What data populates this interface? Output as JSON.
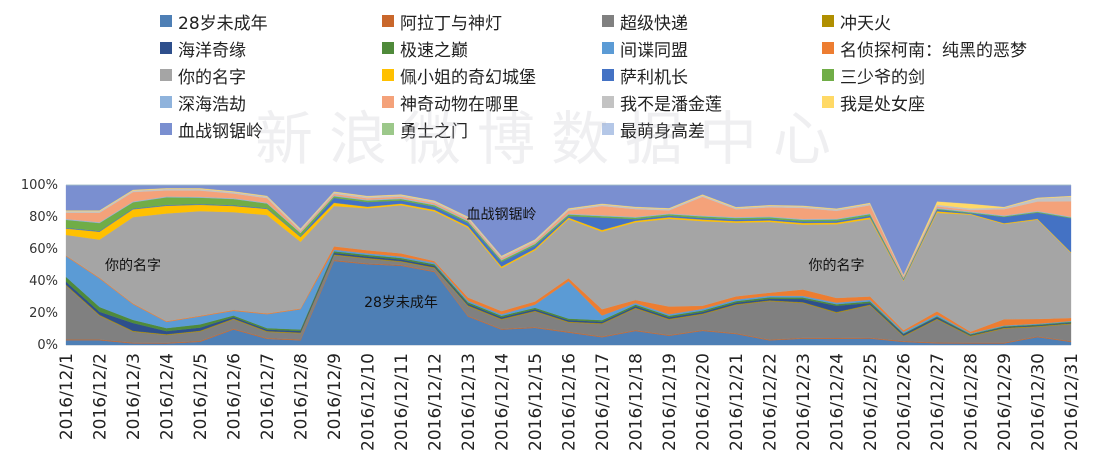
{
  "watermark": "新浪微博数据中心",
  "chart_data": {
    "type": "area",
    "stacked_percent": true,
    "x": [
      "2016/12/1",
      "2016/12/2",
      "2016/12/3",
      "2016/12/4",
      "2016/12/5",
      "2016/12/6",
      "2016/12/7",
      "2016/12/8",
      "2016/12/9",
      "2016/12/10",
      "2016/12/11",
      "2016/12/12",
      "2016/12/13",
      "2016/12/14",
      "2016/12/15",
      "2016/12/16",
      "2016/12/17",
      "2016/12/18",
      "2016/12/19",
      "2016/12/20",
      "2016/12/21",
      "2016/12/22",
      "2016/12/23",
      "2016/12/24",
      "2016/12/25",
      "2016/12/26",
      "2016/12/27",
      "2016/12/28",
      "2016/12/29",
      "2016/12/30",
      "2016/12/31"
    ],
    "y_ticks": [
      "0%",
      "20%",
      "40%",
      "60%",
      "80%",
      "100%"
    ],
    "ylim": [
      0,
      100
    ],
    "legend_position": "top",
    "annotations": [
      {
        "text": "你的名字",
        "x": "2016/12/3",
        "y": 50
      },
      {
        "text": "28岁未成年",
        "x": "2016/12/11",
        "y": 27
      },
      {
        "text": "血战钢锯岭",
        "x": "2016/12/14",
        "y": 82
      },
      {
        "text": "你的名字",
        "x": "2016/12/24",
        "y": 50
      }
    ],
    "series": [
      {
        "name": "28岁未成年",
        "color": "#4e7fb5",
        "values": [
          3,
          3,
          1,
          1,
          2,
          10,
          4,
          3,
          52,
          52,
          51,
          47,
          18,
          10,
          11,
          8,
          5,
          9,
          6,
          9,
          7,
          3,
          4,
          4,
          4,
          2,
          1,
          1,
          1,
          5,
          2
        ]
      },
      {
        "name": "阿拉丁与神灯",
        "color": "#c9672b",
        "values": [
          0.5,
          0.5,
          0.5,
          0.5,
          0.5,
          0.5,
          0.5,
          0.5,
          0.5,
          0.5,
          0.5,
          0.5,
          0.5,
          0.5,
          0.5,
          0.5,
          0.5,
          0.5,
          0.5,
          0.5,
          0.5,
          0.5,
          0.5,
          0.5,
          0.5,
          0.5,
          0.5,
          0.5,
          0.5,
          0.5,
          0.5
        ]
      },
      {
        "name": "超级快递",
        "color": "#808080",
        "values": [
          34,
          15,
          7,
          5,
          6,
          6,
          4,
          4,
          3,
          3,
          2,
          2,
          6,
          6,
          10,
          6,
          8,
          14,
          10,
          10,
          18,
          25,
          22,
          16,
          20,
          3,
          14,
          4,
          9,
          6,
          11
        ]
      },
      {
        "name": "冲天火",
        "color": "#b08f00",
        "values": [
          0.5,
          0.5,
          0.5,
          0.5,
          0.5,
          0.5,
          0.5,
          0.5,
          0.5,
          0.5,
          0.5,
          0.5,
          0.5,
          0.5,
          0.5,
          0.5,
          0.5,
          0.5,
          0.5,
          0.5,
          0.5,
          0.5,
          0.5,
          0.5,
          0.5,
          0.5,
          0.5,
          0.5,
          0.5,
          0.5,
          0.5
        ]
      },
      {
        "name": "海洋奇缘",
        "color": "#2e4f8c",
        "values": [
          2,
          2,
          5,
          2,
          2,
          1,
          1,
          1,
          1,
          1,
          1,
          1,
          1,
          1,
          1,
          1,
          1,
          1,
          1,
          1,
          1,
          1,
          2,
          4,
          1,
          1,
          1,
          0.5,
          0.5,
          0.5,
          0.5
        ]
      },
      {
        "name": "极速之巅",
        "color": "#4f8a3a",
        "values": [
          3,
          3,
          2,
          2,
          2,
          1,
          1,
          1,
          1,
          1,
          1,
          1,
          1,
          1,
          1,
          1,
          1,
          1,
          1,
          1,
          1,
          1,
          1,
          1,
          1,
          0.5,
          0.5,
          0.5,
          0.5,
          0.5,
          0.5
        ]
      },
      {
        "name": "间谍同盟",
        "color": "#5b9bd5",
        "values": [
          13,
          18,
          10,
          4,
          5,
          3,
          9,
          13,
          1,
          1,
          1,
          1,
          1,
          1,
          2,
          24,
          3,
          1,
          1,
          1,
          1,
          1,
          1,
          1,
          1,
          1,
          1,
          0.5,
          0.5,
          0.5,
          0.5
        ]
      },
      {
        "name": "名侦探柯南：纯黑的恶梦",
        "color": "#ed7d31",
        "values": [
          0.5,
          0.5,
          0.5,
          0.5,
          0.5,
          0.5,
          0.5,
          0.5,
          2,
          2,
          2,
          1,
          2,
          2,
          2,
          2,
          4,
          2,
          5,
          2,
          2,
          2,
          4,
          3,
          2,
          1,
          2,
          1,
          4,
          3,
          2
        ]
      },
      {
        "name": "你的名字",
        "color": "#a5a5a5",
        "values": [
          13,
          24,
          55,
          70,
          66,
          63,
          64,
          43,
          25,
          27,
          31,
          32,
          44,
          28,
          33,
          38,
          50,
          50,
          57,
          54,
          47,
          46,
          41,
          47,
          48,
          32,
          60,
          75,
          61,
          63,
          42
        ]
      },
      {
        "name": "佩小姐的奇幻城堡",
        "color": "#ffc000",
        "values": [
          4,
          5,
          5,
          5,
          4,
          4,
          4,
          3,
          2,
          1,
          1,
          1,
          1,
          1,
          1,
          1,
          1,
          1,
          1,
          1,
          1,
          1,
          1,
          1,
          1,
          0.5,
          1,
          0.5,
          0.5,
          0.5,
          0.5
        ]
      },
      {
        "name": "萨利机长",
        "color": "#4472c4",
        "values": [
          0.5,
          0.5,
          0.5,
          0.5,
          0.5,
          0.5,
          0.5,
          0.5,
          3,
          3,
          2,
          2,
          2,
          3,
          2,
          1,
          8,
          1,
          1,
          1,
          1,
          1,
          1,
          1,
          1,
          0.5,
          1,
          0.5,
          4,
          4,
          22
        ]
      },
      {
        "name": "三少爷的剑",
        "color": "#70ad47",
        "values": [
          5,
          5,
          4,
          5,
          4,
          4,
          3,
          2,
          1,
          1,
          1,
          1,
          1,
          1,
          1,
          1,
          1,
          1,
          1,
          1,
          1,
          1,
          1,
          1,
          1,
          0.5,
          0.5,
          0.5,
          0.5,
          0.5,
          0.5
        ]
      },
      {
        "name": "深海浩劫",
        "color": "#8fb3dc",
        "values": [
          0.5,
          0.5,
          0.5,
          0.5,
          0.5,
          0.5,
          0.5,
          0.5,
          0.5,
          0.5,
          0.5,
          0.5,
          0.5,
          0.5,
          0.5,
          0.5,
          0.5,
          0.5,
          0.5,
          0.5,
          0.5,
          0.5,
          0.5,
          0.5,
          0.5,
          0.5,
          0.5,
          0.5,
          0.5,
          0.5,
          0.5
        ]
      },
      {
        "name": "神奇动物在哪里",
        "color": "#f4a27a",
        "values": [
          4,
          6,
          6,
          4,
          4,
          3,
          3,
          1,
          1,
          1,
          1,
          1,
          1,
          1,
          1,
          2,
          6,
          5,
          2,
          12,
          5,
          6,
          7,
          5,
          5,
          1,
          1,
          1,
          4,
          6,
          10
        ]
      },
      {
        "name": "我不是潘金莲",
        "color": "#c3c3c3",
        "values": [
          1,
          1,
          1,
          1,
          1,
          1,
          1,
          1,
          1,
          1,
          1,
          1,
          1,
          1,
          1,
          1,
          1,
          1,
          1,
          1,
          1,
          1,
          1,
          1,
          1,
          0.5,
          1,
          1,
          1,
          2,
          3
        ]
      },
      {
        "name": "我是处女座",
        "color": "#ffd966",
        "values": [
          0.5,
          0.5,
          0.5,
          0.5,
          0.5,
          0.5,
          0.5,
          0.5,
          0.5,
          0.5,
          0.5,
          0.5,
          0.5,
          0.5,
          0.5,
          0.5,
          0.5,
          0.5,
          0.5,
          0.5,
          0.5,
          0.5,
          0.5,
          0.5,
          0.5,
          0.5,
          2,
          3,
          0.5,
          0.5,
          0.5
        ]
      },
      {
        "name": "血战钢锯岭",
        "color": "#7a8fd0",
        "values": [
          16,
          16,
          3,
          2,
          2,
          4,
          7,
          28,
          4,
          7,
          6,
          10,
          20,
          46,
          35,
          15,
          12,
          14,
          15,
          6,
          14,
          13,
          13,
          15,
          11,
          58,
          10,
          12,
          14,
          8,
          7
        ]
      },
      {
        "name": "勇士之门",
        "color": "#9cc88a",
        "values": [
          0,
          0,
          0,
          0,
          0,
          0,
          0,
          0,
          0,
          0,
          0,
          0,
          0,
          0,
          0,
          0,
          0,
          0,
          0,
          0,
          0,
          0,
          0,
          0,
          0,
          0,
          0,
          0,
          0,
          0,
          0
        ]
      },
      {
        "name": "最萌身高差",
        "color": "#b4c7e7",
        "values": [
          0,
          0,
          0,
          0,
          0,
          0,
          0,
          0,
          0,
          0,
          0,
          0,
          0,
          0,
          0,
          0,
          0,
          0,
          0,
          0,
          0,
          0,
          0,
          0,
          0,
          0,
          0,
          0,
          0,
          0,
          0
        ]
      }
    ]
  }
}
